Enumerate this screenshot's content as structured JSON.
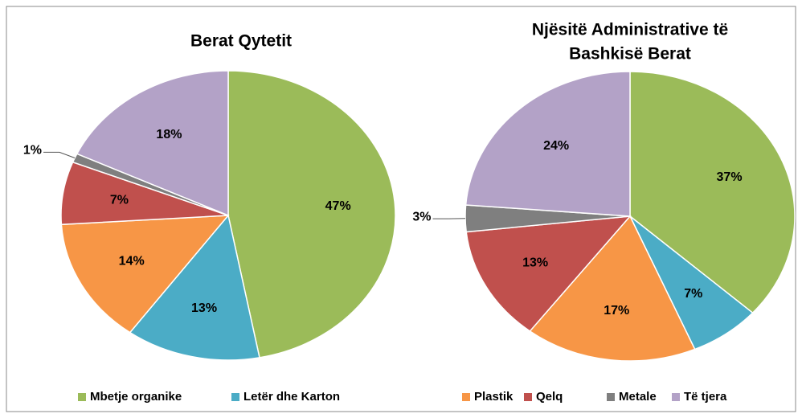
{
  "chart_data": [
    {
      "type": "pie",
      "title": [
        "Berat Qytetit"
      ],
      "categories": [
        "Mbetje organike",
        "Letër dhe Karton",
        "Plastik",
        "Qelq",
        "Metale",
        "Të tjera"
      ],
      "values": [
        47,
        13,
        14,
        7,
        1,
        18
      ],
      "value_labels": [
        "47%",
        "13%",
        "14%",
        "7%",
        "1%",
        "18%"
      ],
      "colors": [
        "#9bbb59",
        "#4bacc6",
        "#f79646",
        "#c0504d",
        "#7f7f7f",
        "#b3a2c7"
      ]
    },
    {
      "type": "pie",
      "title": [
        "Njësitë Administrative të",
        "Bashkisë Berat"
      ],
      "categories": [
        "Mbetje organike",
        "Letër dhe Karton",
        "Plastik",
        "Qelq",
        "Metale",
        "Të tjera"
      ],
      "values": [
        37,
        7,
        17,
        13,
        3,
        24
      ],
      "value_labels": [
        "37%",
        "7%",
        "17%",
        "13%",
        "3%",
        "24%"
      ],
      "colors": [
        "#9bbb59",
        "#4bacc6",
        "#f79646",
        "#c0504d",
        "#7f7f7f",
        "#b3a2c7"
      ]
    }
  ]
}
